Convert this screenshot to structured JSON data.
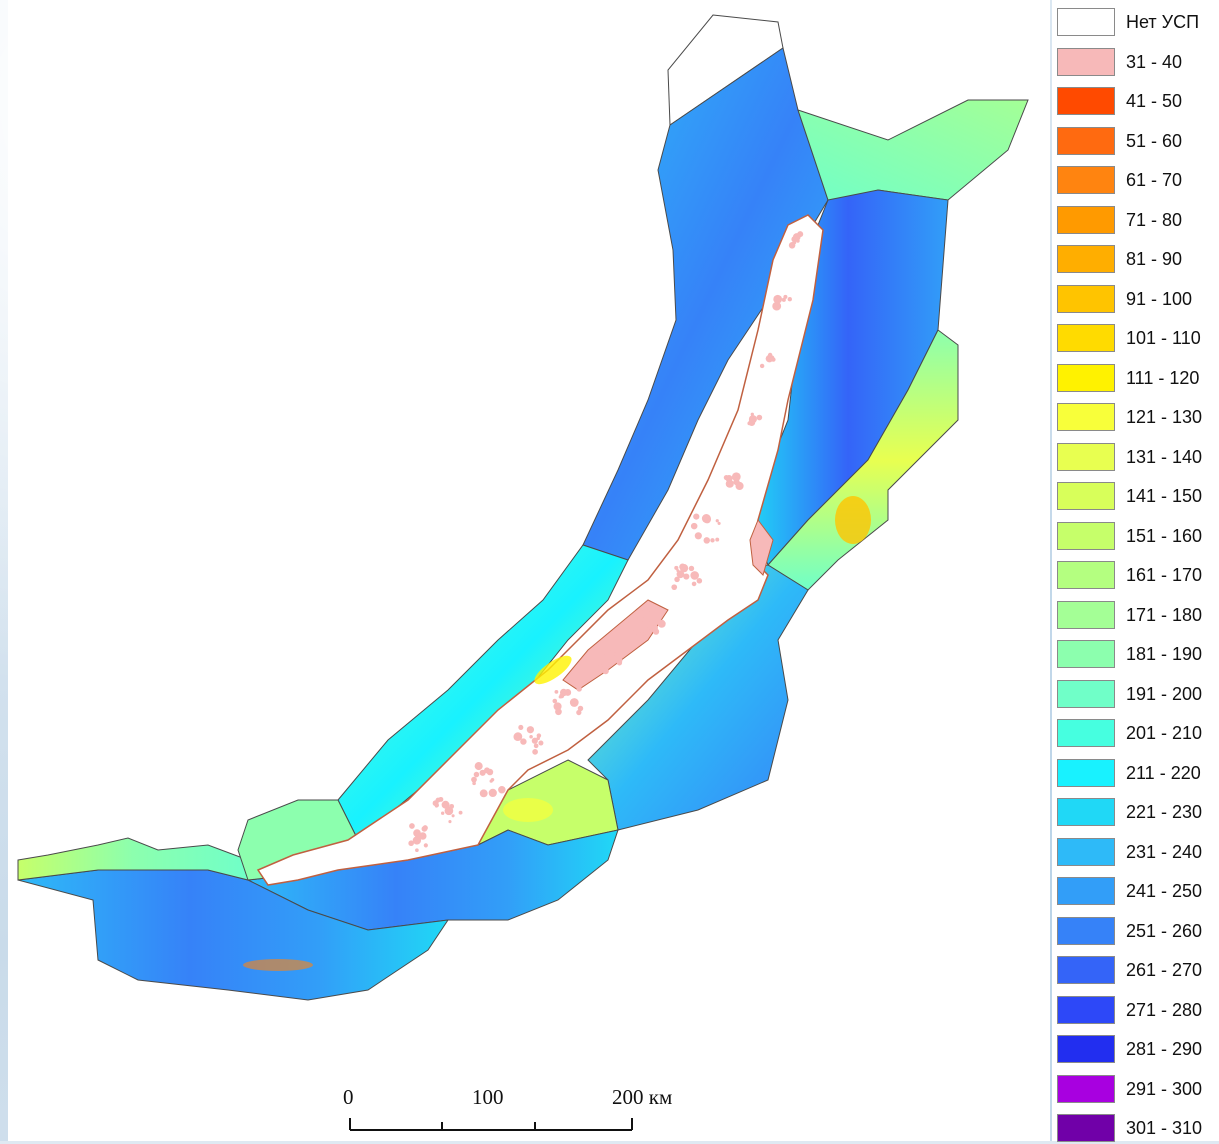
{
  "legend": {
    "items": [
      {
        "label": "Нет УСП",
        "color": "#ffffff"
      },
      {
        "label": "31 - 40",
        "color": "#f7b9b9"
      },
      {
        "label": "41 - 50",
        "color": "#ff4a00"
      },
      {
        "label": "51 - 60",
        "color": "#ff6a10"
      },
      {
        "label": "61 - 70",
        "color": "#ff8410"
      },
      {
        "label": "71 - 80",
        "color": "#ff9a00"
      },
      {
        "label": "81 - 90",
        "color": "#ffae00"
      },
      {
        "label": "91 - 100",
        "color": "#ffc400"
      },
      {
        "label": "101 - 110",
        "color": "#ffdb00"
      },
      {
        "label": "111 - 120",
        "color": "#fff200"
      },
      {
        "label": "121 - 130",
        "color": "#f8ff3a"
      },
      {
        "label": "131 - 140",
        "color": "#e8ff50"
      },
      {
        "label": "141 - 150",
        "color": "#d8ff5a"
      },
      {
        "label": "151 - 160",
        "color": "#c6ff6a"
      },
      {
        "label": "161 - 170",
        "color": "#b4ff80"
      },
      {
        "label": "171 - 180",
        "color": "#a4ff96"
      },
      {
        "label": "181 - 190",
        "color": "#8cffae"
      },
      {
        "label": "191 - 200",
        "color": "#70ffc8"
      },
      {
        "label": "201 - 210",
        "color": "#46ffe0"
      },
      {
        "label": "211 - 220",
        "color": "#18f2ff"
      },
      {
        "label": "221 - 230",
        "color": "#20d8f6"
      },
      {
        "label": "231 - 240",
        "color": "#2ebaf8"
      },
      {
        "label": "241 - 250",
        "color": "#329ef8"
      },
      {
        "label": "251 - 260",
        "color": "#3682f8"
      },
      {
        "label": "261 - 270",
        "color": "#3464f8"
      },
      {
        "label": "271 - 280",
        "color": "#2d48f8"
      },
      {
        "label": "281 - 290",
        "color": "#222ef0"
      },
      {
        "label": "291 - 300",
        "color": "#a800e0"
      },
      {
        "label": "301 - 310",
        "color": "#7000a8"
      }
    ]
  },
  "scale_bar": {
    "label_0": "0",
    "label_100": "100",
    "label_200": "200 км"
  },
  "map": {
    "lake_color": "#ffffff",
    "island_color": "#f7b9b9",
    "border_color": "#4a4a4a"
  }
}
